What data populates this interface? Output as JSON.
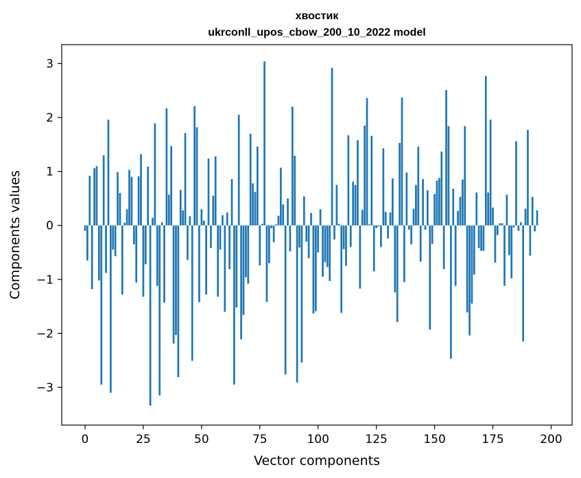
{
  "chart_data": {
    "type": "bar",
    "title": "хвостик",
    "subtitle": "ukrconll_upos_cbow_200_10_2022 model",
    "xlabel": "Vector components",
    "ylabel": "Components values",
    "xlim": [
      -10,
      209
    ],
    "ylim": [
      -3.7,
      3.35
    ],
    "x_ticks": [
      0,
      25,
      50,
      75,
      100,
      125,
      150,
      175,
      200
    ],
    "y_ticks": [
      -3,
      -2,
      -1,
      0,
      1,
      2,
      3
    ],
    "y_tick_labels": [
      "−3",
      "−2",
      "−1",
      "0",
      "1",
      "2",
      "3"
    ],
    "grid": false,
    "bar_color": "#1f77b4",
    "values": [
      -0.1,
      -0.65,
      0.92,
      -1.18,
      1.06,
      1.1,
      -1.02,
      -2.95,
      1.3,
      -0.88,
      1.96,
      -3.1,
      -0.45,
      -0.57,
      0.99,
      0.6,
      -1.28,
      0.05,
      0.3,
      1.03,
      0.9,
      -0.35,
      -1.06,
      0.91,
      1.32,
      -1.32,
      -0.72,
      1.09,
      -3.34,
      0.14,
      1.89,
      -1.12,
      -3.15,
      0.06,
      -1.43,
      2.17,
      0.57,
      1.47,
      -2.19,
      -2.03,
      -2.81,
      0.66,
      0.28,
      1.71,
      -0.64,
      0.17,
      -2.51,
      2.21,
      1.82,
      -1.42,
      0.3,
      0.09,
      -1.28,
      1.24,
      -0.42,
      0.55,
      1.28,
      -1.32,
      -0.45,
      0.19,
      -1.6,
      0.24,
      -0.81,
      0.86,
      -2.95,
      -1.52,
      2.05,
      -2.11,
      -1.66,
      -0.96,
      -1.08,
      1.7,
      0.78,
      0.62,
      1.46,
      -0.74,
      0.03,
      3.04,
      -1.42,
      -0.7,
      -0.05,
      -0.31,
      0.02,
      0.18,
      1.07,
      0.39,
      -2.76,
      0.5,
      -0.48,
      2.2,
      1.29,
      -2.91,
      -0.41,
      -2.54,
      0.54,
      -0.3,
      -0.61,
      0.23,
      -1.63,
      -1.59,
      -0.5,
      0.3,
      -0.95,
      -0.68,
      -0.77,
      -1.03,
      2.92,
      -0.26,
      0.75,
      0.03,
      -1.62,
      -0.44,
      -0.75,
      1.67,
      -0.4,
      0.81,
      0.75,
      1.58,
      -1.17,
      0.29,
      1.85,
      2.36,
      0.02,
      1.66,
      -0.85,
      -0.05,
      -0.02,
      -0.4,
      1.43,
      0.25,
      -0.24,
      0.24,
      0.87,
      -1.24,
      -1.79,
      1.53,
      2.37,
      -1.05,
      0.98,
      -0.08,
      -0.35,
      0.31,
      0.75,
      1.46,
      -0.67,
      0.86,
      -0.08,
      0.65,
      -1.93,
      -0.34,
      0.58,
      0.83,
      0.88,
      1.37,
      -0.81,
      2.51,
      1.84,
      -2.47,
      0.68,
      -1.12,
      0.27,
      0.53,
      0.85,
      1.84,
      -1.61,
      -2.04,
      -1.45,
      -0.91,
      0.61,
      -0.42,
      -0.47,
      -0.47,
      2.77,
      0.61,
      1.96,
      0.33,
      -0.69,
      -0.18,
      0.04,
      0.04,
      -1.12,
      0.57,
      -0.55,
      -0.98,
      -0.04,
      1.56,
      -0.1,
      0.06,
      -2.15,
      0.31,
      1.77,
      -0.56,
      0.53,
      -0.11,
      0.28
    ]
  }
}
